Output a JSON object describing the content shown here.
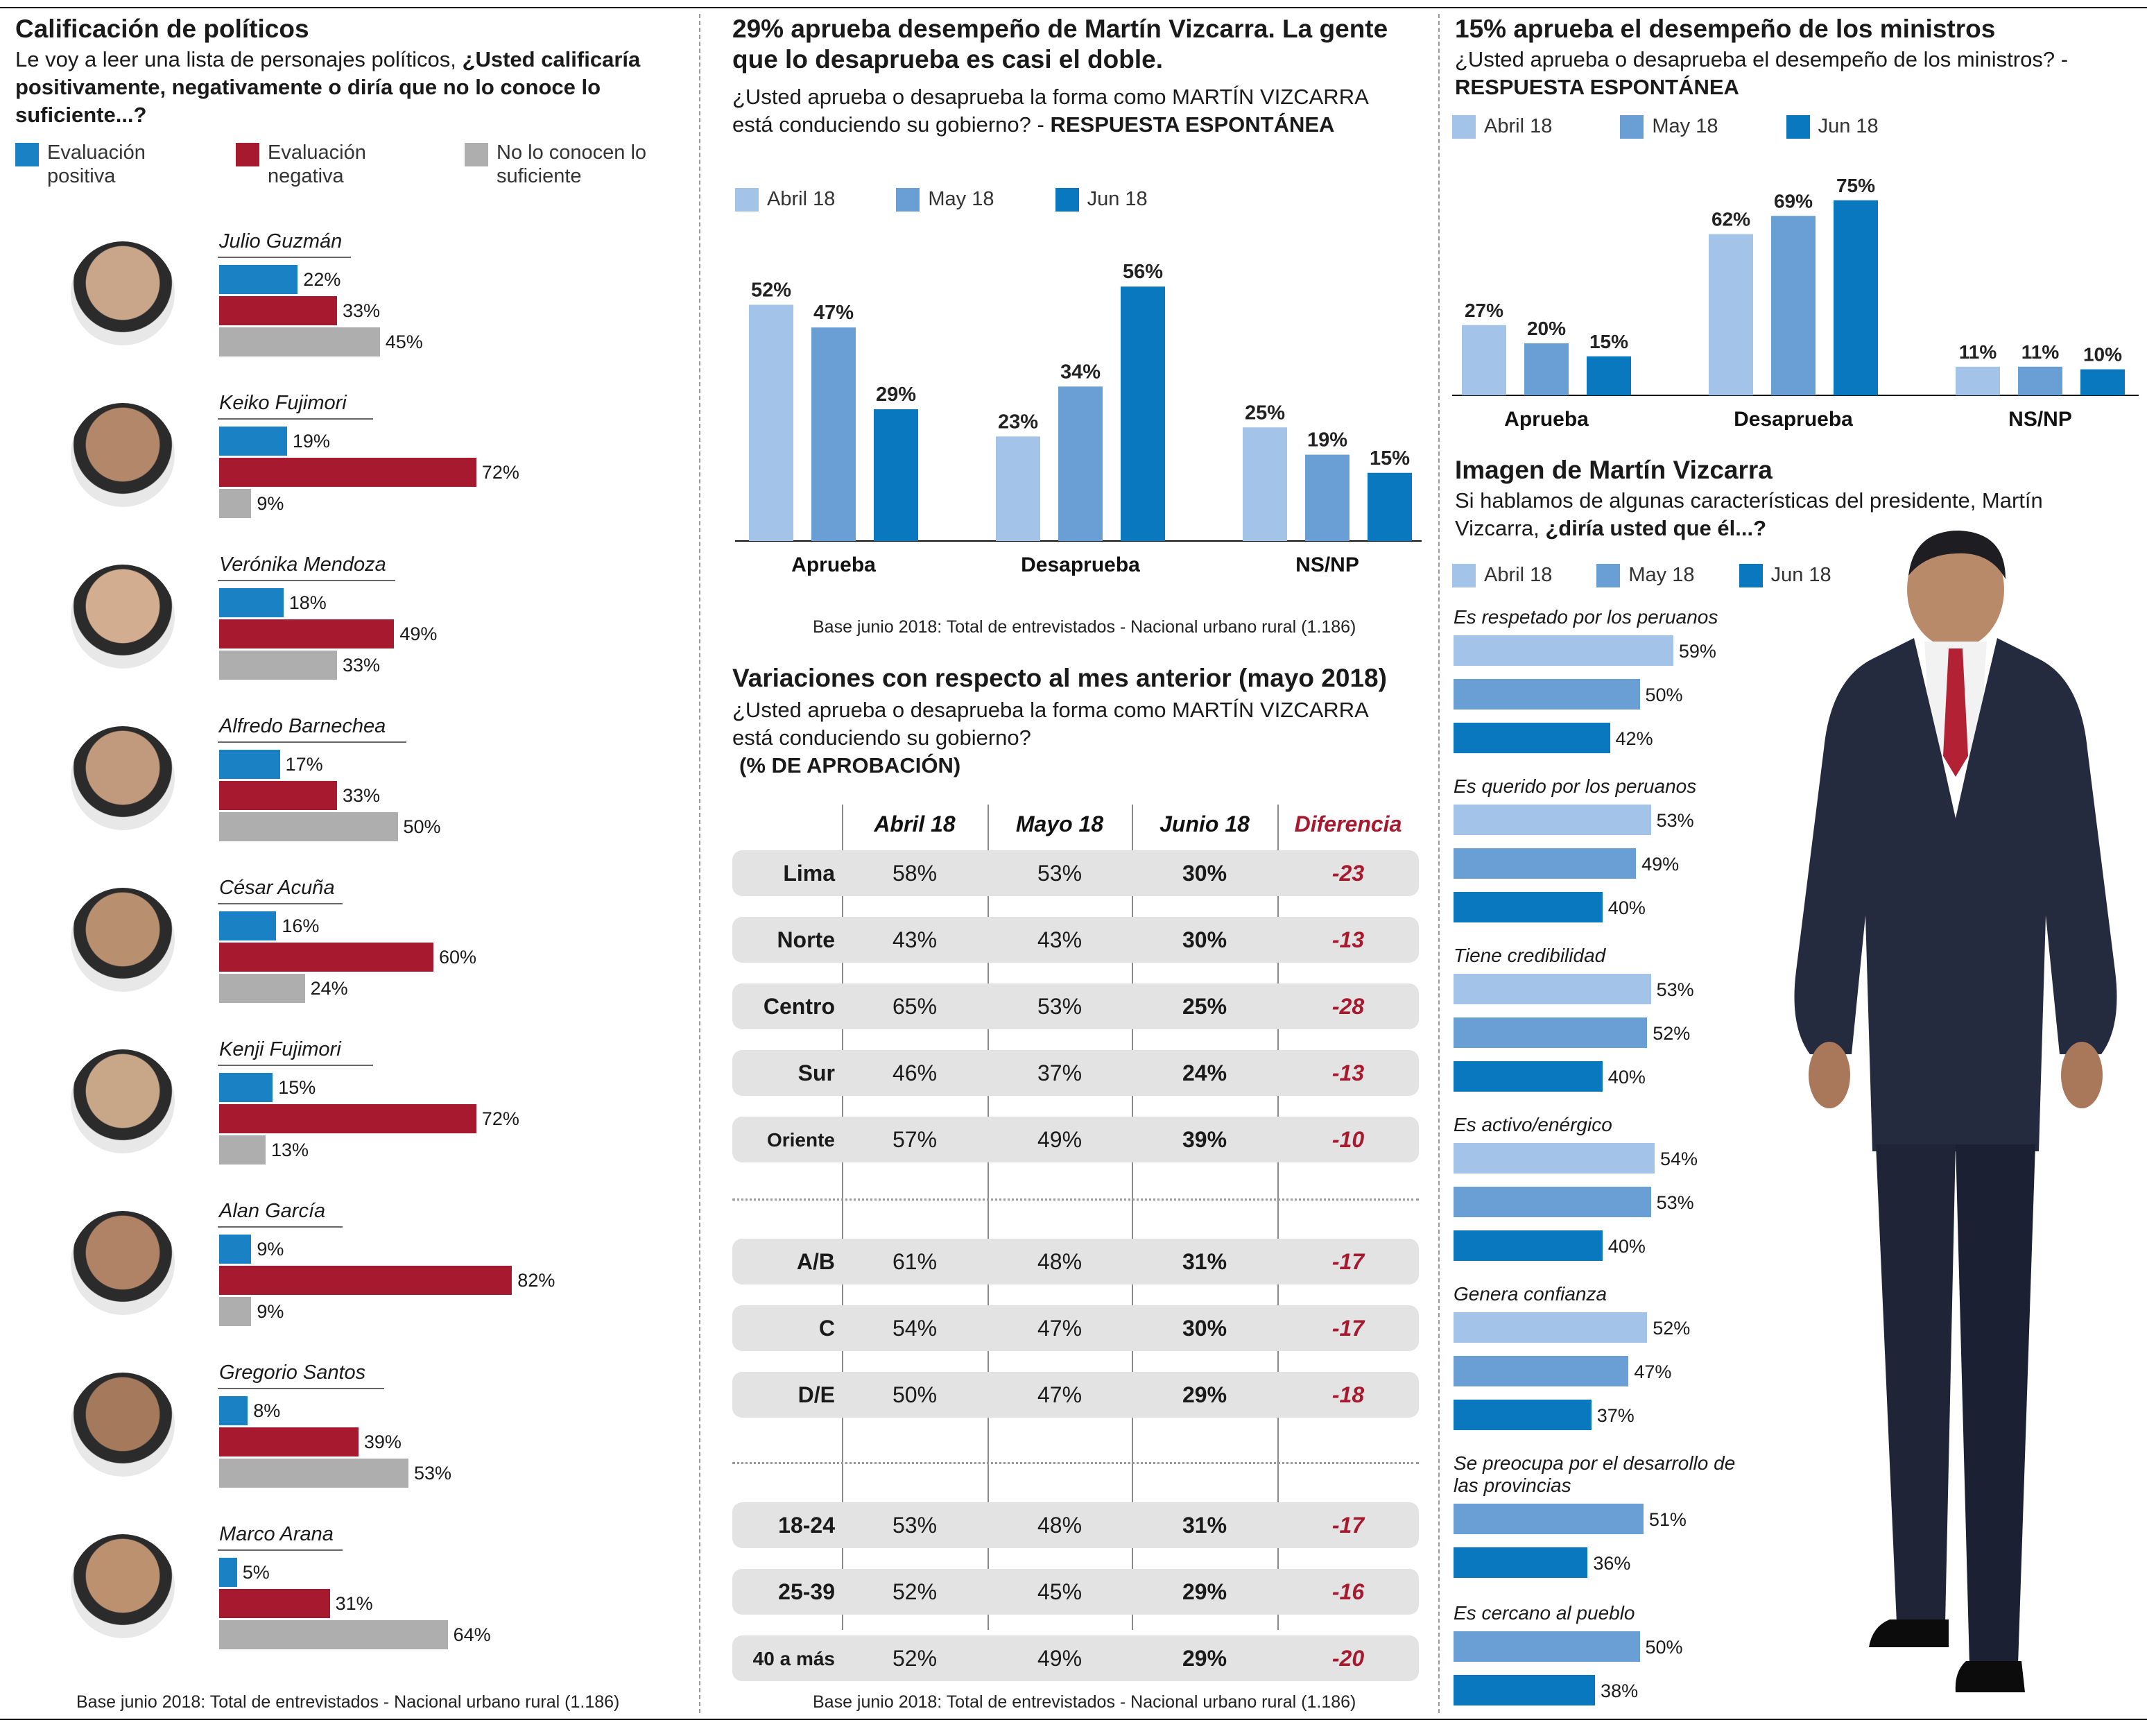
{
  "colors": {
    "positive": "#1a82c4",
    "negative": "#a6192e",
    "unknown": "#aeaeae",
    "abril": "#a3c4e8",
    "mayo": "#6a9fd6",
    "junio": "#0a78be",
    "diff": "#a6192e"
  },
  "panel1": {
    "title": "Calificación de políticos",
    "question_plain": "Le voy a leer una lista de personajes políticos,",
    "question_bold": "¿Usted calificaría positivamente, negativamente o diría que no lo conoce lo suficiente...?",
    "legend": [
      {
        "label": "Evaluación positiva",
        "color": "#1a82c4"
      },
      {
        "label": "Evaluación negativa",
        "color": "#a6192e"
      },
      {
        "label": "No lo conocen lo suficiente",
        "color": "#aeaeae"
      }
    ],
    "note": "Base junio 2018: Total de entrevistados - Nacional urbano rural (1.186)"
  },
  "panel2": {
    "title": "29% aprueba desempeño de Martín Vizcarra. La gente que lo desaprueba es casi el doble.",
    "question_plain": "¿Usted aprueba o desaprueba la forma como MARTÍN VIZCARRA está conduciendo su gobierno? -",
    "question_bold": "RESPUESTA ESPONTÁNEA",
    "legend": [
      "Abril 18",
      "May 18",
      "Jun 18"
    ],
    "note": "Base junio 2018: Total de entrevistados - Nacional urbano rural (1.186)"
  },
  "panel3": {
    "title": "15% aprueba el desempeño de los ministros",
    "question_plain": "¿Usted aprueba o desaprueba el desempeño de los ministros? -",
    "question_bold": "RESPUESTA ESPONTÁNEA",
    "legend": [
      "Abril 18",
      "May 18",
      "Jun 18"
    ]
  },
  "panel4": {
    "title": "Variaciones con respecto al mes anterior (mayo 2018)",
    "question": "¿Usted aprueba o desaprueba la forma como MARTÍN VIZCARRA está conduciendo su gobierno?",
    "question_bold": "(% DE APROBACIÓN)",
    "headers": [
      "Abril 18",
      "Mayo 18",
      "Junio 18",
      "Diferencia"
    ],
    "groups": [
      [
        {
          "label": "Lima",
          "abril": "58%",
          "mayo": "53%",
          "junio": "30%",
          "diff": "-23"
        },
        {
          "label": "Norte",
          "abril": "43%",
          "mayo": "43%",
          "junio": "30%",
          "diff": "-13"
        },
        {
          "label": "Centro",
          "abril": "65%",
          "mayo": "53%",
          "junio": "25%",
          "diff": "-28"
        },
        {
          "label": "Sur",
          "abril": "46%",
          "mayo": "37%",
          "junio": "24%",
          "diff": "-13"
        },
        {
          "label": "Oriente",
          "abril": "57%",
          "mayo": "49%",
          "junio": "39%",
          "diff": "-10"
        }
      ],
      [
        {
          "label": "A/B",
          "abril": "61%",
          "mayo": "48%",
          "junio": "31%",
          "diff": "-17"
        },
        {
          "label": "C",
          "abril": "54%",
          "mayo": "47%",
          "junio": "30%",
          "diff": "-17"
        },
        {
          "label": "D/E",
          "abril": "50%",
          "mayo": "47%",
          "junio": "29%",
          "diff": "-18"
        }
      ],
      [
        {
          "label": "18-24",
          "abril": "53%",
          "mayo": "48%",
          "junio": "31%",
          "diff": "-17"
        },
        {
          "label": "25-39",
          "abril": "52%",
          "mayo": "45%",
          "junio": "29%",
          "diff": "-16"
        },
        {
          "label": "40 a más",
          "abril": "52%",
          "mayo": "49%",
          "junio": "29%",
          "diff": "-20"
        }
      ]
    ],
    "note": "Base junio 2018: Total de entrevistados - Nacional urbano rural (1.186)"
  },
  "panel5": {
    "title": "Imagen de Martín Vizcarra",
    "question_plain": "Si hablamos de algunas características del presidente, Martín Vizcarra,",
    "question_bold": "¿diría usted que él...?",
    "legend": [
      "Abril 18",
      "May 18",
      "Jun 18"
    ]
  },
  "chart_data": [
    {
      "type": "bar",
      "orientation": "horizontal",
      "title": "Calificación de políticos",
      "categories": [
        "Julio Guzmán",
        "Keiko Fujimori",
        "Verónika Mendoza",
        "Alfredo Barnechea",
        "César Acuña",
        "Kenji Fujimori",
        "Alan García",
        "Gregorio Santos",
        "Marco Arana"
      ],
      "series": [
        {
          "name": "Evaluación positiva",
          "values": [
            22,
            19,
            18,
            17,
            16,
            15,
            9,
            8,
            5
          ]
        },
        {
          "name": "Evaluación negativa",
          "values": [
            33,
            72,
            49,
            33,
            60,
            72,
            82,
            39,
            31
          ]
        },
        {
          "name": "No lo conocen lo suficiente",
          "values": [
            45,
            9,
            33,
            50,
            24,
            13,
            9,
            53,
            64
          ]
        }
      ]
    },
    {
      "type": "bar",
      "title": "29% aprueba desempeño de Martín Vizcarra. La gente que lo desaprueba es casi el doble.",
      "categories": [
        "Aprueba",
        "Desaprueba",
        "NS/NP"
      ],
      "series": [
        {
          "name": "Abril 18",
          "values": [
            52,
            23,
            25
          ]
        },
        {
          "name": "May 18",
          "values": [
            47,
            34,
            19
          ]
        },
        {
          "name": "Jun 18",
          "values": [
            29,
            56,
            15
          ]
        }
      ],
      "ylim": [
        0,
        60
      ]
    },
    {
      "type": "bar",
      "title": "15% aprueba el desempeño de los ministros",
      "categories": [
        "Aprueba",
        "Desaprueba",
        "NS/NP"
      ],
      "series": [
        {
          "name": "Abril 18",
          "values": [
            27,
            62,
            11
          ]
        },
        {
          "name": "May 18",
          "values": [
            20,
            69,
            11
          ]
        },
        {
          "name": "Jun 18",
          "values": [
            15,
            75,
            10
          ]
        }
      ],
      "ylim": [
        0,
        80
      ]
    },
    {
      "type": "bar",
      "orientation": "horizontal",
      "title": "Imagen de Martín Vizcarra",
      "groups": [
        {
          "label": "Es respetado por los peruanos",
          "values": [
            {
              "series": "Abril 18",
              "value": 59
            },
            {
              "series": "May 18",
              "value": 50
            },
            {
              "series": "Jun 18",
              "value": 42
            }
          ]
        },
        {
          "label": "Es querido por los peruanos",
          "values": [
            {
              "series": "Abril 18",
              "value": 53
            },
            {
              "series": "May 18",
              "value": 49
            },
            {
              "series": "Jun 18",
              "value": 40
            }
          ]
        },
        {
          "label": "Tiene credibilidad",
          "values": [
            {
              "series": "Abril 18",
              "value": 53
            },
            {
              "series": "May 18",
              "value": 52
            },
            {
              "series": "Jun 18",
              "value": 40
            }
          ]
        },
        {
          "label": "Es activo/enérgico",
          "values": [
            {
              "series": "Abril 18",
              "value": 54
            },
            {
              "series": "May 18",
              "value": 53
            },
            {
              "series": "Jun 18",
              "value": 40
            }
          ]
        },
        {
          "label": "Genera confianza",
          "values": [
            {
              "series": "Abril 18",
              "value": 52
            },
            {
              "series": "May 18",
              "value": 47
            },
            {
              "series": "Jun 18",
              "value": 37
            }
          ]
        },
        {
          "label": "Se preocupa por el desarrollo de las provincias",
          "values": [
            {
              "series": "May 18",
              "value": 51
            },
            {
              "series": "Jun 18",
              "value": 36
            }
          ]
        },
        {
          "label": "Es cercano al pueblo",
          "values": [
            {
              "series": "May 18",
              "value": 50
            },
            {
              "series": "Jun 18",
              "value": 38
            }
          ]
        }
      ]
    }
  ]
}
